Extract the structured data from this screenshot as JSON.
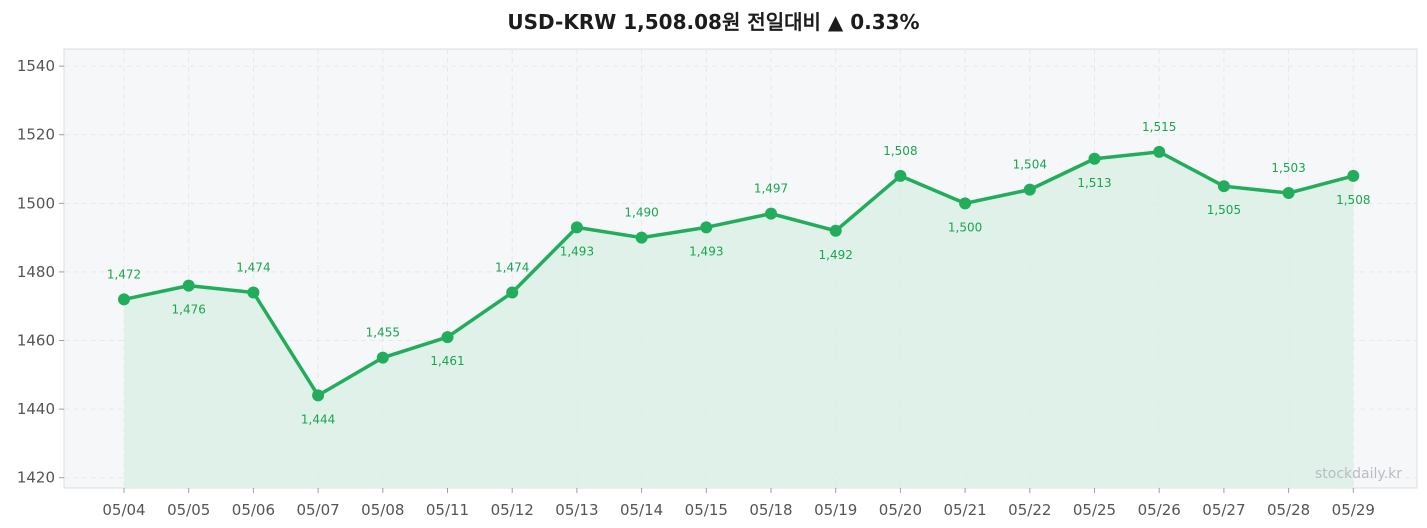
{
  "title": "USD-KRW  1,508.08원  전일대비 ▲ 0.33%",
  "watermark": "stockdaily.kr",
  "colors": {
    "line": "#22ad5c",
    "label": "#1aa64f",
    "fill": "#ddf0e5",
    "plot_bg": "#f6f7f9",
    "grid": "#e6e8ec"
  },
  "chart_data": {
    "type": "line",
    "title": "USD-KRW  1,508.08원  전일대비 ▲ 0.33%",
    "xlabel": "",
    "ylabel": "",
    "categories": [
      "05/04",
      "05/05",
      "05/06",
      "05/07",
      "05/08",
      "05/11",
      "05/12",
      "05/13",
      "05/14",
      "05/15",
      "05/18",
      "05/19",
      "05/20",
      "05/21",
      "05/22",
      "05/25",
      "05/26",
      "05/27",
      "05/28",
      "05/29"
    ],
    "series": [
      {
        "values": [
          1472,
          1476,
          1474,
          1444,
          1455,
          1461,
          1474,
          1493,
          1490,
          1493,
          1497,
          1492,
          1508,
          1500,
          1504,
          1513,
          1515,
          1505,
          1503,
          1508
        ],
        "labels": [
          "1,472",
          "1,476",
          "1,474",
          "1,444",
          "1,455",
          "1,461",
          "1,474",
          "1,493",
          "1,490",
          "1,493",
          "1,497",
          "1,492",
          "1,508",
          "1,500",
          "1,504",
          "1,513",
          "1,515",
          "1,505",
          "1,503",
          "1,508"
        ],
        "label_position": [
          "above",
          "below",
          "above",
          "below",
          "above",
          "below",
          "above",
          "below",
          "above",
          "below",
          "above",
          "below",
          "above",
          "below",
          "above",
          "below",
          "above",
          "below",
          "above",
          "below"
        ]
      }
    ],
    "ylim": [
      1417,
      1545
    ],
    "yticks": [
      1420,
      1440,
      1460,
      1480,
      1500,
      1520,
      1540
    ],
    "grid": true,
    "area_fill": true,
    "markers": true
  }
}
